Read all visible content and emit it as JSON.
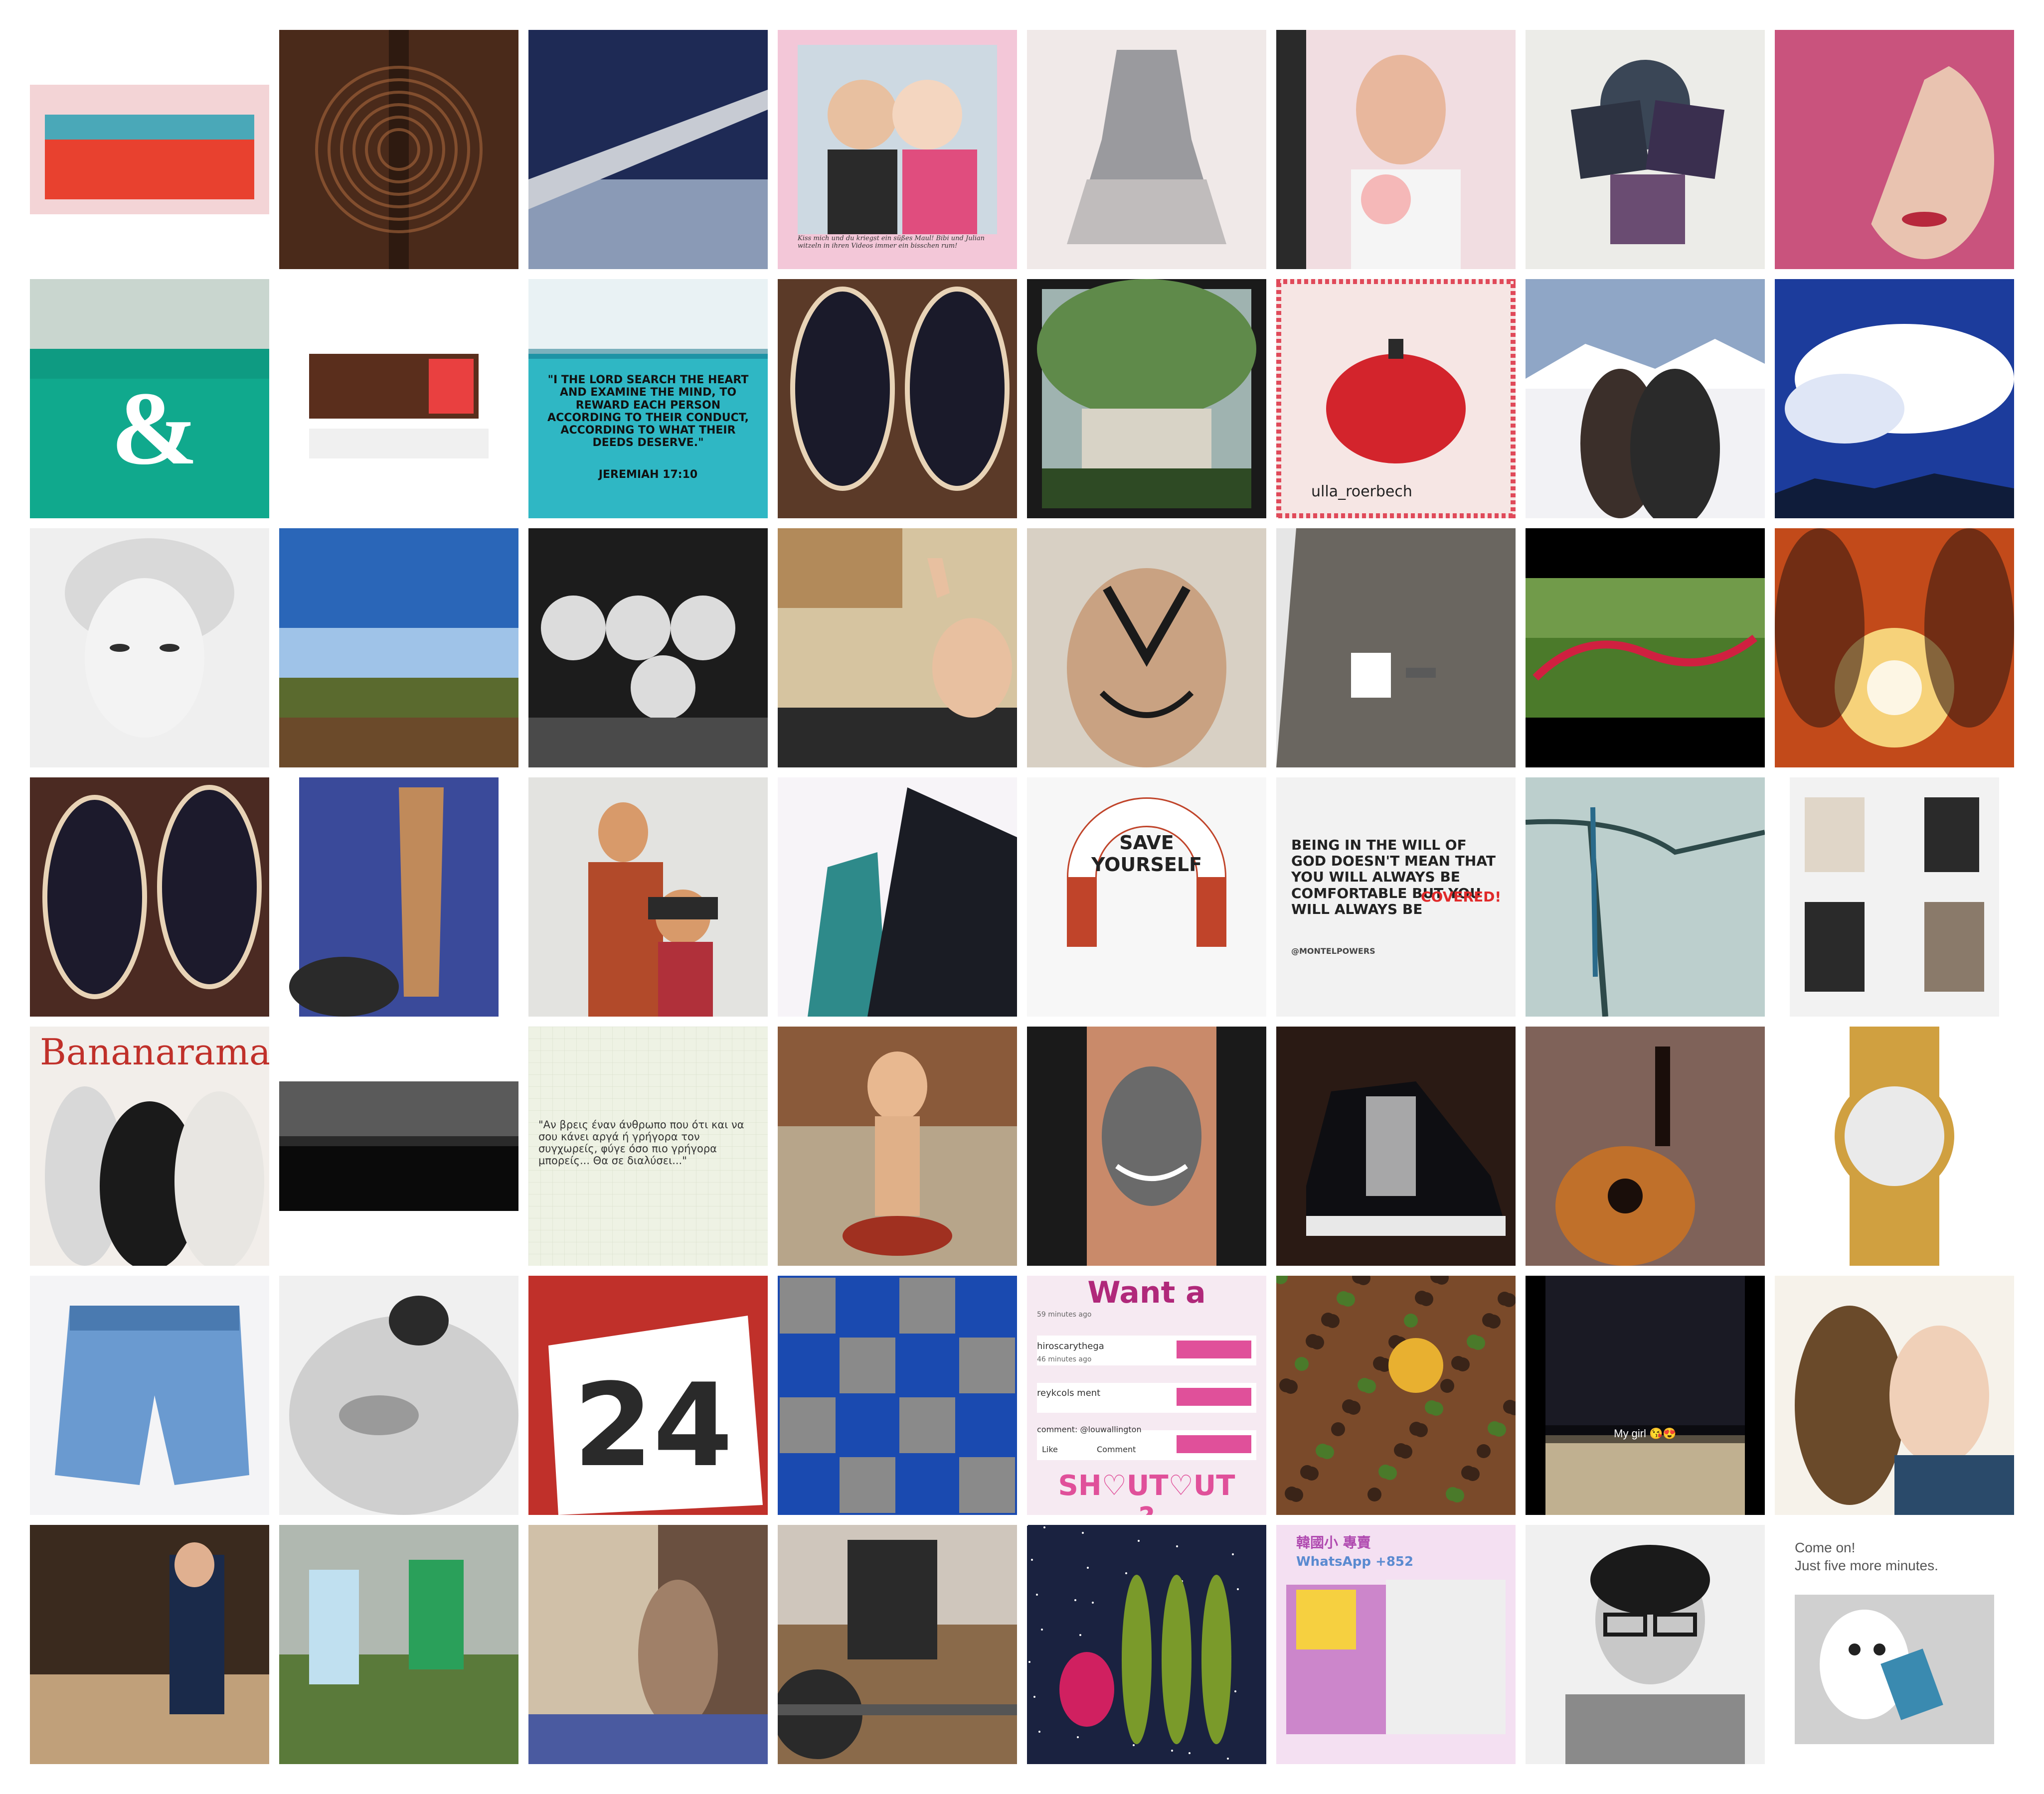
{
  "page": {
    "background": "#ffffff",
    "description": "8x7 photo collage grid"
  },
  "tiles": [
    {
      "name": "tile-red-canvas",
      "colors": [
        "#f3d4d6",
        "#4aa8b8",
        "#e8412f",
        "#f6a26b"
      ],
      "texts": []
    },
    {
      "name": "tile-ornate-door",
      "colors": [
        "#4a2a1a",
        "#7a4a2e",
        "#2e1a10",
        "#a9683c"
      ],
      "texts": []
    },
    {
      "name": "tile-airplane-wing",
      "colors": [
        "#1e2a55",
        "#6e7fa8",
        "#c7cbd3",
        "#8a9ab6"
      ],
      "texts": []
    },
    {
      "name": "tile-couple-kiss",
      "colors": [
        "#f3c7d8",
        "#cdd9e2",
        "#2a2a2a",
        "#e04d7e"
      ],
      "texts": [
        "Kiss mich und du kriegst ein süßes Maul! Bibi und Julian witzeln in ihren Videos immer ein bisschen rum!"
      ]
    },
    {
      "name": "tile-grey-dress",
      "colors": [
        "#f0e9e8",
        "#9a9a9e",
        "#c0bcbc",
        "#e3d6d0"
      ],
      "texts": []
    },
    {
      "name": "tile-mirror-selfie",
      "colors": [
        "#f1dde1",
        "#e8b79d",
        "#1a1a1a",
        "#f5b8b8"
      ],
      "texts": []
    },
    {
      "name": "tile-purple-squares",
      "colors": [
        "#ecece8",
        "#2d3342",
        "#3a2f4f",
        "#6a4c72"
      ],
      "texts": []
    },
    {
      "name": "tile-pink-hair",
      "colors": [
        "#c9537d",
        "#e08bad",
        "#e9c3b0",
        "#b7283c"
      ],
      "texts": []
    },
    {
      "name": "tile-ampersand-prints",
      "colors": [
        "#0e9b82",
        "#c9d6cf",
        "#10a98d",
        "#f0ede6"
      ],
      "texts": [
        "&"
      ]
    },
    {
      "name": "tile-wood-sideboard",
      "colors": [
        "#ffffff",
        "#5a2e1c",
        "#8a4b2e",
        "#e94040"
      ],
      "texts": []
    },
    {
      "name": "tile-bible-verse",
      "colors": [
        "#e9f2f4",
        "#2fb7c4",
        "#0e6f86",
        "#ffffff"
      ],
      "texts": [
        "\"I THE LORD SEARCH THE HEART AND EXAMINE THE MIND, TO REWARD EACH PERSON ACCORDING TO THEIR CONDUCT, ACCORDING TO WHAT THEIR DEEDS DESERVE.\"",
        "JEREMIAH 17:10"
      ]
    },
    {
      "name": "tile-sneakers-feet",
      "colors": [
        "#5b3a28",
        "#1a1a2a",
        "#e8d3b6",
        "#8c5a3a"
      ],
      "texts": []
    },
    {
      "name": "tile-museum-trees",
      "colors": [
        "#5f8a4a",
        "#d8d3c6",
        "#2e4a24",
        "#9fb3b0"
      ],
      "texts": []
    },
    {
      "name": "tile-red-kettle",
      "colors": [
        "#f6e6e4",
        "#d3242c",
        "#2a2a2a",
        "#e04a5a"
      ],
      "texts": [
        "ulla_roerbech"
      ]
    },
    {
      "name": "tile-ski-couple",
      "colors": [
        "#8fa6c6",
        "#f2f2f5",
        "#3b2f2a",
        "#536b8d"
      ],
      "texts": []
    },
    {
      "name": "tile-cloud-sky",
      "colors": [
        "#1c3c9c",
        "#ffffff",
        "#4a6ad0",
        "#0f1c3a"
      ],
      "texts": []
    },
    {
      "name": "tile-vintage-woman",
      "colors": [
        "#efefef",
        "#9a9a9a",
        "#2e2e2e",
        "#d9d9d9"
      ],
      "texts": []
    },
    {
      "name": "tile-farm-fields",
      "colors": [
        "#2a66b8",
        "#9fc3e8",
        "#5a6a2e",
        "#6b4a2a"
      ],
      "texts": []
    },
    {
      "name": "tile-family-bw",
      "colors": [
        "#1c1c1c",
        "#8a8a8a",
        "#dcdcdc",
        "#4a4a4a"
      ],
      "texts": []
    },
    {
      "name": "tile-peace-selfie",
      "colors": [
        "#d6c4a0",
        "#b28a5a",
        "#2a2a2a",
        "#eae2d6"
      ],
      "texts": []
    },
    {
      "name": "tile-face-paint",
      "colors": [
        "#d8d0c4",
        "#9c6a4c",
        "#1a1a1a",
        "#c9a282"
      ],
      "texts": []
    },
    {
      "name": "tile-floor-tools",
      "colors": [
        "#e6e6e6",
        "#6a6660",
        "#8b877f",
        "#ffffff"
      ],
      "texts": []
    },
    {
      "name": "tile-red-leash",
      "colors": [
        "#000000",
        "#4b7a2a",
        "#d02040",
        "#8ab060"
      ],
      "texts": []
    },
    {
      "name": "tile-fire-kiss",
      "colors": [
        "#e8a040",
        "#c24a1a",
        "#3a1a10",
        "#f6d27a"
      ],
      "texts": []
    },
    {
      "name": "tile-sneakers-feet-2",
      "colors": [
        "#4b2a22",
        "#1c1a2c",
        "#e8d3b6",
        "#8c5a3a"
      ],
      "texts": []
    },
    {
      "name": "tile-stone-column",
      "colors": [
        "#ffffff",
        "#3a4a9a",
        "#c08a5a",
        "#2a2a2a"
      ],
      "texts": []
    },
    {
      "name": "tile-mother-son",
      "colors": [
        "#e3e3e0",
        "#b24a2a",
        "#d89a6a",
        "#2a2a2a"
      ],
      "texts": []
    },
    {
      "name": "tile-skyscrapers",
      "colors": [
        "#f7f4f8",
        "#1a1c24",
        "#2e8a8a",
        "#5a6a7a"
      ],
      "texts": []
    },
    {
      "name": "tile-save-yourself",
      "colors": [
        "#f7f7f7",
        "#c0442a",
        "#222222",
        "#ffffff"
      ],
      "texts": [
        "SAVE YOURSELF"
      ]
    },
    {
      "name": "tile-will-of-god",
      "colors": [
        "#f2f2f2",
        "#222222",
        "#e02a2a",
        "#999999"
      ],
      "texts": [
        "BEING IN THE WILL OF GOD DOESN'T MEAN THAT YOU WILL ALWAYS BE COMFORTABLE BUT YOU WILL ALWAYS BE",
        "COVERED!",
        "@MONTELPOWERS"
      ]
    },
    {
      "name": "tile-peacock-branch",
      "colors": [
        "#9fb8b8",
        "#d9e6e2",
        "#2e4a4a",
        "#5a7a7a"
      ],
      "texts": []
    },
    {
      "name": "tile-fashion-collage",
      "colors": [
        "#ffffff",
        "#2a2a2a",
        "#e0d6c8",
        "#8a7a6a"
      ],
      "texts": []
    },
    {
      "name": "tile-bananarama",
      "colors": [
        "#ffffff",
        "#1a1a1a",
        "#c0302a",
        "#d8d0c8"
      ],
      "texts": [
        "Bananarama"
      ]
    },
    {
      "name": "tile-night-lake",
      "colors": [
        "#ffffff",
        "#0a0a0a",
        "#5a5a5a",
        "#2a2a2a"
      ],
      "texts": []
    },
    {
      "name": "tile-greek-quote",
      "colors": [
        "#eef2e4",
        "#d6dcc8",
        "#333333",
        "#ffffff"
      ],
      "texts": [
        "\"Αν βρεις έναν άνθρωπο που ότι και να σου κάνει αργά ή γρήγορα τον συγχωρείς, φύγε όσο πιο γρήγορα μπορείς... Θα σε διαλύσει...\""
      ]
    },
    {
      "name": "tile-kewpie-doll",
      "colors": [
        "#8a5a3a",
        "#c98a5a",
        "#4a2a1a",
        "#a03020"
      ],
      "texts": []
    },
    {
      "name": "tile-shining-tattoo",
      "colors": [
        "#1a1a1a",
        "#6a6a6a",
        "#c98a6a",
        "#3a3a3a"
      ],
      "texts": []
    },
    {
      "name": "tile-jordan-sneaker",
      "colors": [
        "#2a1a14",
        "#0e0e12",
        "#e8e8e8",
        "#6a4a3a"
      ],
      "texts": []
    },
    {
      "name": "tile-acoustic-guitar",
      "colors": [
        "#3a1a14",
        "#c0702a",
        "#e8d0c0",
        "#1a0e0a"
      ],
      "texts": []
    },
    {
      "name": "tile-gold-watch",
      "colors": [
        "#ffffff",
        "#d0a040",
        "#eaeaea",
        "#8a6a2a"
      ],
      "texts": []
    },
    {
      "name": "tile-denim-shorts",
      "colors": [
        "#f4f4f6",
        "#6a9ad0",
        "#4a7ab0",
        "#ffffff"
      ],
      "texts": []
    },
    {
      "name": "tile-hospital-bw",
      "colors": [
        "#f0f0f0",
        "#9a9a9a",
        "#2a2a2a",
        "#cfcfcf"
      ],
      "texts": []
    },
    {
      "name": "tile-number-24",
      "colors": [
        "#c0302a",
        "#ffffff",
        "#2a2a2a",
        "#e06040"
      ],
      "texts": [
        "24"
      ]
    },
    {
      "name": "tile-blue-cars",
      "colors": [
        "#1a4ab0",
        "#8a8a8a",
        "#2a2a2a",
        "#c0c0c0"
      ],
      "texts": []
    },
    {
      "name": "tile-shoutout",
      "colors": [
        "#f6eaf2",
        "#b0287a",
        "#e0509a",
        "#3a3a3a"
      ],
      "texts": [
        "Want a",
        "59 minutes ago",
        "hiroscarythega",
        "46 minutes ago",
        "reykcols ment",
        "comment: @louwallington",
        "Like",
        "Comment",
        "SH♡UT♡UT ?"
      ]
    },
    {
      "name": "tile-food-egg",
      "colors": [
        "#3a2418",
        "#7a4a2a",
        "#e8b030",
        "#4a7a2a"
      ],
      "texts": []
    },
    {
      "name": "tile-dog-snapchat",
      "colors": [
        "#1a1a24",
        "#6a7a9a",
        "#c0b090",
        "#2a2a3a"
      ],
      "texts": [
        "My girl 😘😍"
      ]
    },
    {
      "name": "tile-couple-selfie",
      "colors": [
        "#f6f2ea",
        "#d0c080",
        "#6a4a2a",
        "#2a4a6a"
      ],
      "texts": []
    },
    {
      "name": "tile-tailor-shop",
      "colors": [
        "#3a2a1e",
        "#6a4a30",
        "#1a2a4a",
        "#c0a07a"
      ],
      "texts": []
    },
    {
      "name": "tile-soccer-players",
      "colors": [
        "#5a7a3a",
        "#2aa05a",
        "#c0e0f0",
        "#e8d070"
      ],
      "texts": []
    },
    {
      "name": "tile-cat-window",
      "colors": [
        "#6a5040",
        "#a08068",
        "#2a2018",
        "#d0c0a8"
      ],
      "texts": []
    },
    {
      "name": "tile-gym-bench",
      "colors": [
        "#cfc6bc",
        "#2a2a2a",
        "#8a6a4a",
        "#e8e0d8"
      ],
      "texts": []
    },
    {
      "name": "tile-dragonfruit-galaxy",
      "colors": [
        "#1a2240",
        "#3a4a8a",
        "#7a9a2a",
        "#d02060"
      ],
      "texts": []
    },
    {
      "name": "tile-korean-product",
      "colors": [
        "#f4e0f2",
        "#b04ab0",
        "#5a8ad0",
        "#f6d040"
      ],
      "texts": [
        "韓國小 專賣",
        "WhatsApp +852"
      ]
    },
    {
      "name": "tile-glasses-bw",
      "colors": [
        "#f0f0f0",
        "#8a8a8a",
        "#1a1a1a",
        "#c8c8c8"
      ],
      "texts": []
    },
    {
      "name": "tile-cat-meme",
      "colors": [
        "#ffffff",
        "#555555",
        "#3a8ab0",
        "#d0d0d0"
      ],
      "texts": [
        "Come on!",
        "Just five more minutes."
      ]
    }
  ]
}
